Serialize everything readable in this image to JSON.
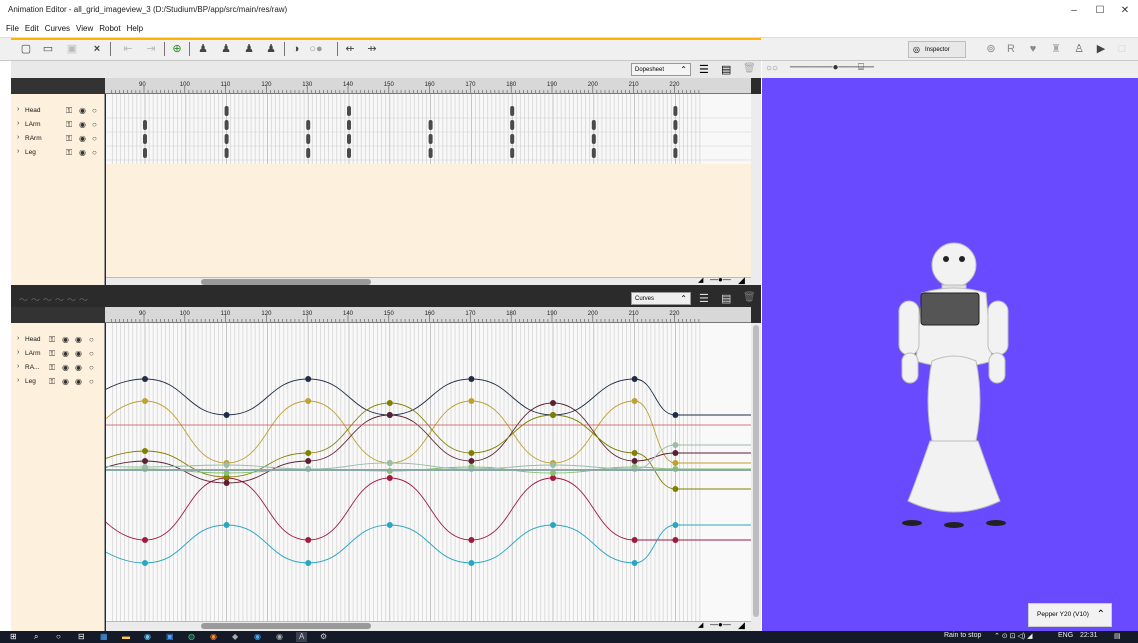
{
  "window": {
    "title": "Animation Editor - all_grid_imageview_3 (D:/Studium/BP/app/src/main/res/raw)",
    "controls": [
      "–",
      "☐",
      "✕"
    ]
  },
  "menu": [
    "File",
    "Edit",
    "Curves",
    "View",
    "Robot",
    "Help"
  ],
  "toolbar": {
    "inspector_label": "Inspector",
    "right_icon_r": "R"
  },
  "dopesheet": {
    "mode": "Dopesheet",
    "ruler_ticks": [
      "90",
      "100",
      "110",
      "120",
      "130",
      "140",
      "150",
      "160",
      "170",
      "180",
      "190",
      "200",
      "210",
      "220"
    ],
    "tracks": [
      {
        "name": "Head",
        "keyframes": [
          110,
          140,
          180,
          220
        ]
      },
      {
        "name": "LArm",
        "keyframes": [
          90,
          110,
          130,
          140,
          160,
          180,
          200,
          220
        ]
      },
      {
        "name": "RArm",
        "keyframes": [
          90,
          110,
          130,
          140,
          160,
          180,
          200,
          220
        ]
      },
      {
        "name": "Leg",
        "keyframes": [
          90,
          110,
          130,
          140,
          160,
          180,
          200,
          220
        ]
      }
    ]
  },
  "curves": {
    "mode": "Curves",
    "ruler_ticks": [
      "90",
      "100",
      "110",
      "120",
      "130",
      "140",
      "150",
      "160",
      "170",
      "180",
      "190",
      "200",
      "210",
      "220"
    ],
    "tracks": [
      {
        "name": "Head"
      },
      {
        "name": "LArm"
      },
      {
        "name": "RA..."
      },
      {
        "name": "Leg"
      }
    ],
    "series_colors": [
      "#1f2d44",
      "#c0a030",
      "#a01a40",
      "#2aa7c0",
      "#b04030",
      "#5b2030",
      "#88c070",
      "#9abca8",
      "#808000"
    ]
  },
  "viewport": {
    "background": "#6a4aff",
    "robot_label": "Pepper Y20 (V10)"
  },
  "taskbar": {
    "weather": "Rain to stop",
    "lang": "ENG",
    "time": "22:31"
  },
  "colors": {
    "accent_orange": "#ffb300",
    "track_bg": "#fdf1dd"
  }
}
